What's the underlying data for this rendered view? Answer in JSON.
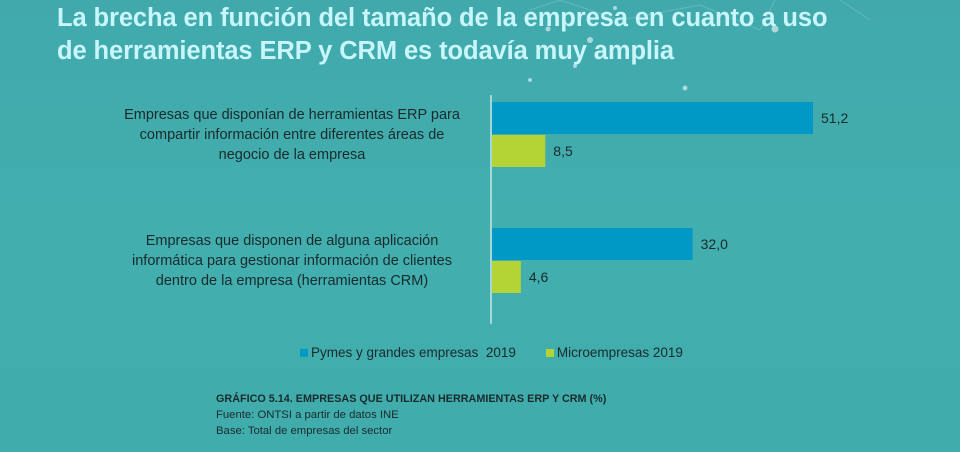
{
  "header": {
    "title_lines": [
      "La brecha en función del tamaño de la empresa en cuanto a uso",
      "de herramientas ERP y CRM es todavía muy amplia"
    ]
  },
  "colors": {
    "background": "#42adad",
    "title": "#c8f6fb",
    "series_pymes": "#0099c6",
    "series_micro": "#b4d335",
    "text": "#1a2a2c",
    "axis": "#e8f4f4"
  },
  "chart_data": {
    "type": "bar",
    "orientation": "horizontal",
    "title": "GRÁFICO 5.14. EMPRESAS QUE UTILIZAN HERRAMIENTAS ERP Y CRM (%)",
    "xlabel": "",
    "ylabel": "",
    "xlim": [
      0,
      55
    ],
    "grid": false,
    "legend_position": "bottom",
    "categories": [
      {
        "lines": [
          "Empresas que disponían de herramientas ERP para",
          "compartir información entre diferentes áreas de",
          "negocio de la empresa"
        ]
      },
      {
        "lines": [
          "Empresas que disponen de alguna aplicación",
          "informática para gestionar información de clientes",
          "dentro de la empresa (herramientas CRM)"
        ]
      }
    ],
    "series": [
      {
        "name": "Pymes y grandes empresas  2019",
        "color": "#0099c6",
        "values": [
          51.2,
          32.0
        ],
        "labels": [
          "51,2",
          "32,0"
        ]
      },
      {
        "name": "Microempresas 2019",
        "color": "#b4d335",
        "values": [
          8.5,
          4.6
        ],
        "labels": [
          "8,5",
          "4,6"
        ]
      }
    ]
  },
  "footer": {
    "caption_title": "GRÁFICO 5.14. EMPRESAS QUE UTILIZAN HERRAMIENTAS ERP Y CRM (%)",
    "source": "Fuente: ONTSI a partir de datos INE",
    "base": "Base: Total de empresas del sector"
  }
}
